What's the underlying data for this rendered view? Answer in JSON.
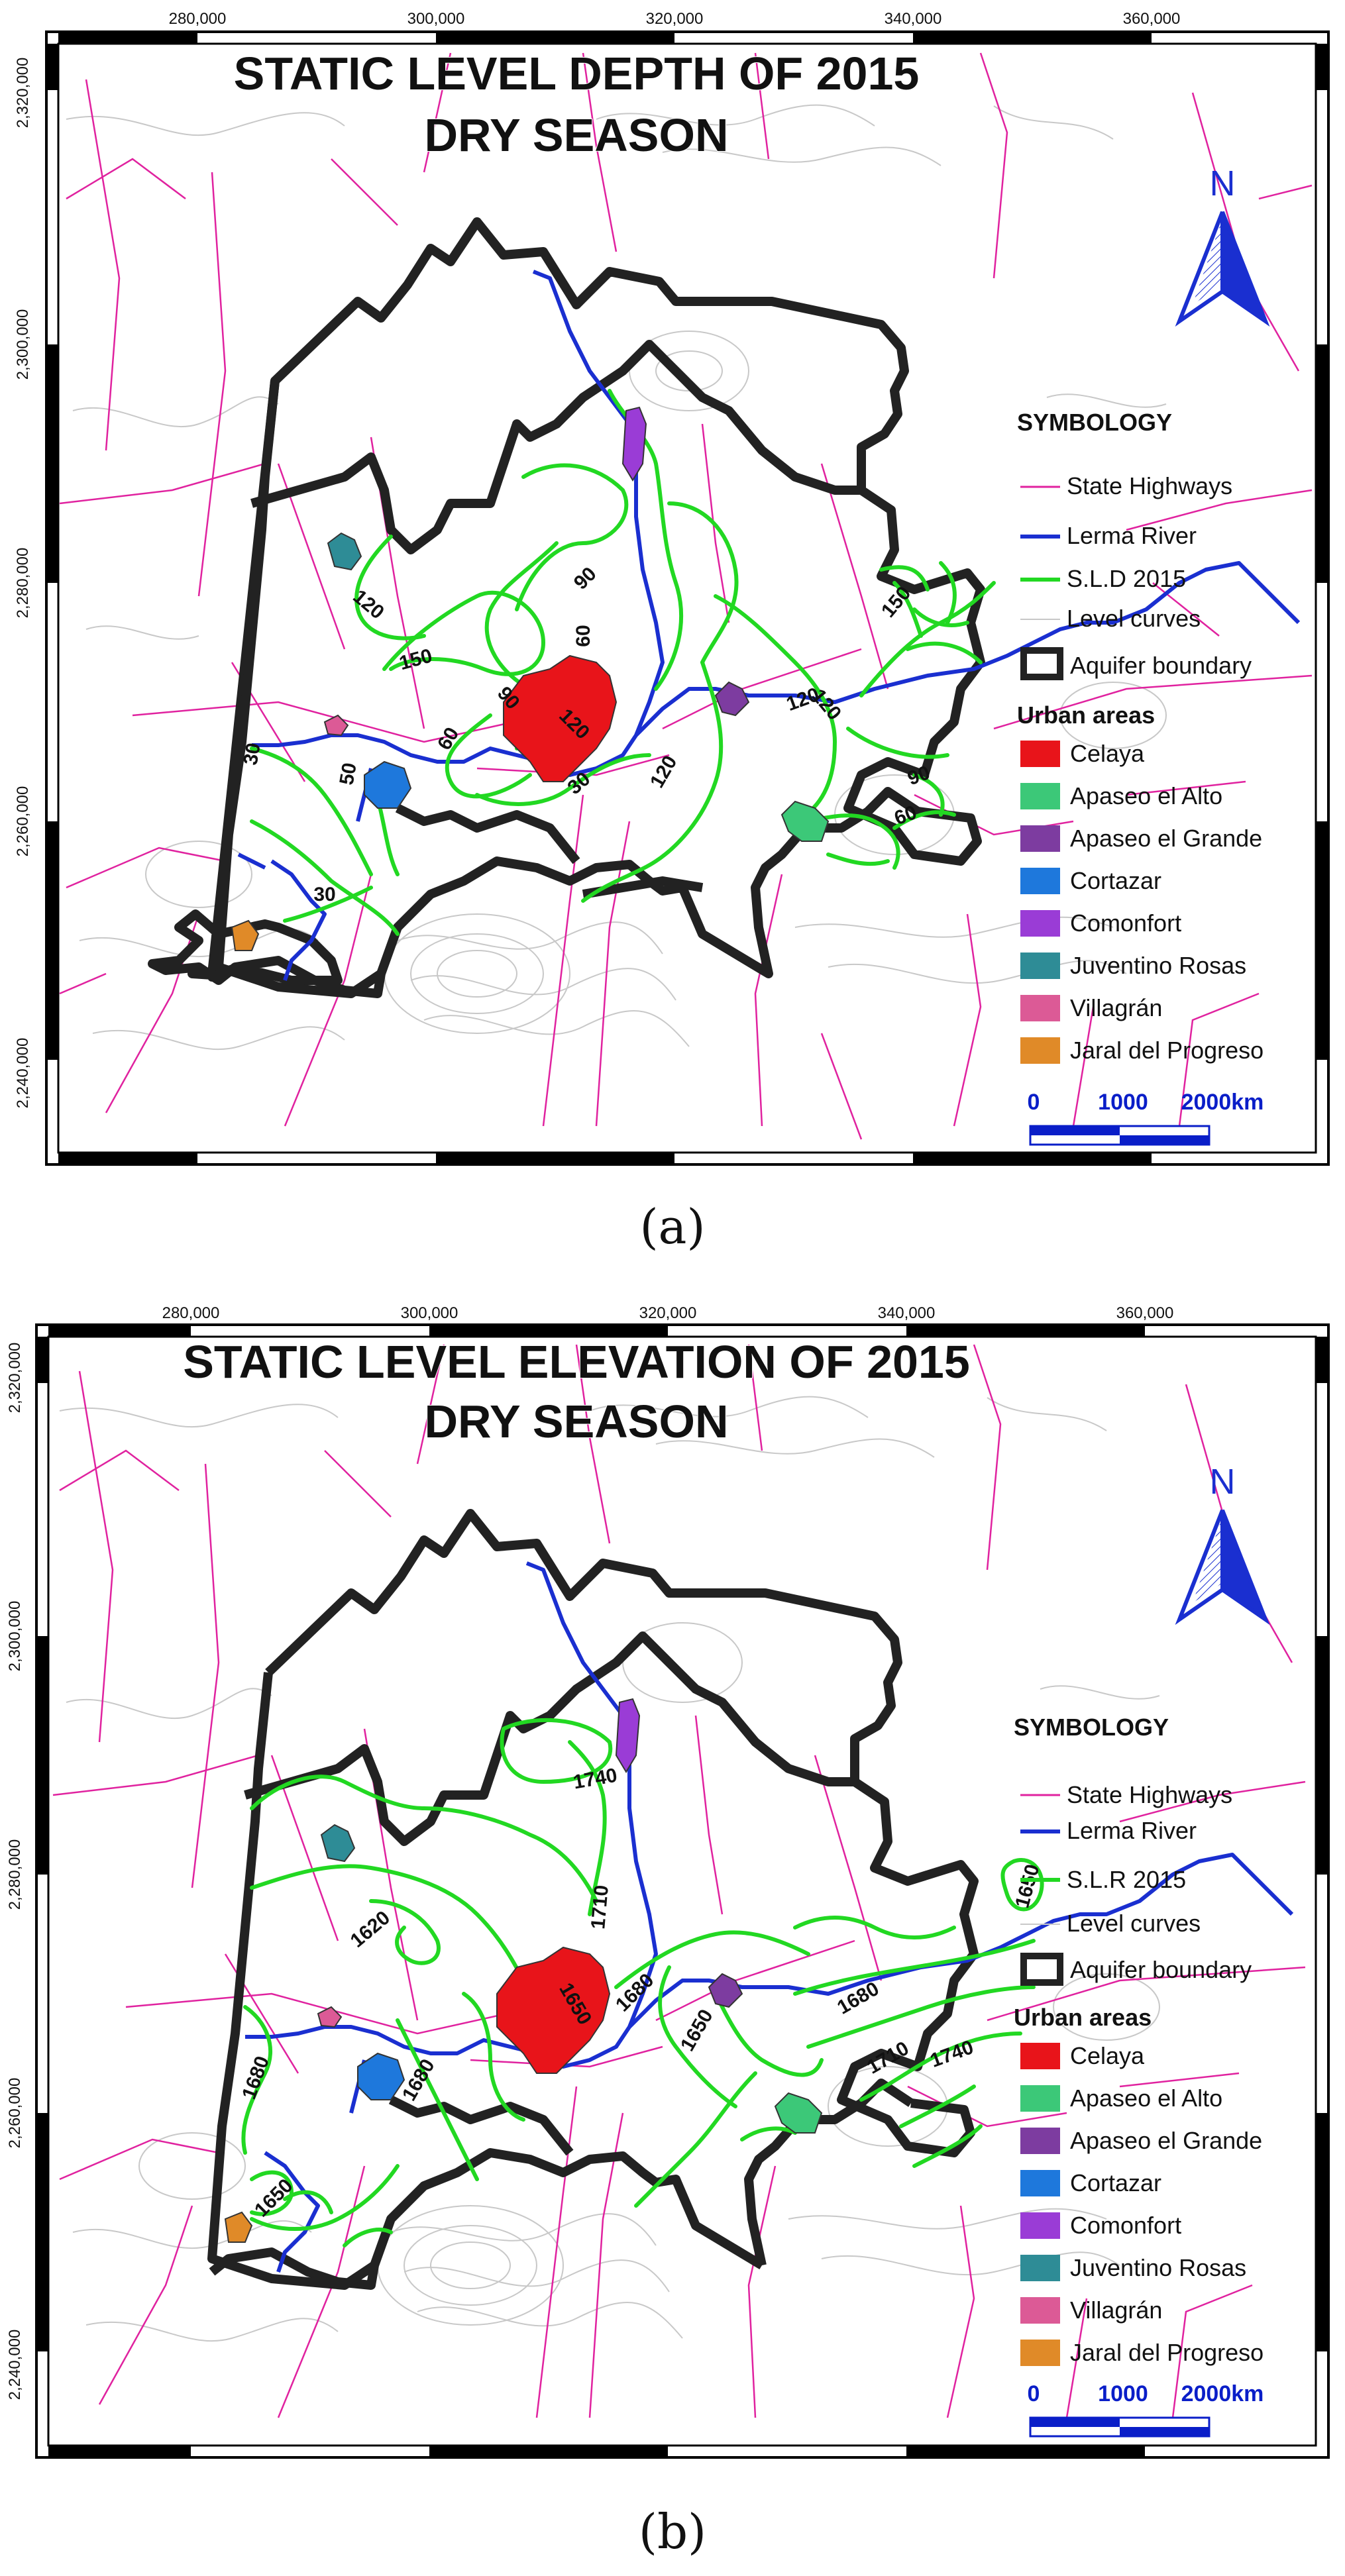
{
  "panels": [
    {
      "id": "a",
      "title_line1": "STATIC LEVEL DEPTH OF 2015",
      "title_line2": "DRY SEASON",
      "caption": "(a)",
      "legend_title": "SYMBOLOGY",
      "legend_items": [
        "State Highways",
        "Lerma River",
        "S.L.D 2015",
        "Level curves",
        "Aquifer boundary"
      ],
      "urban_title": "Urban areas",
      "urban_items": [
        "Celaya",
        "Apaseo el Alto",
        "Apaseo el Grande",
        "Cortazar",
        "Comonfort",
        "Juventino Rosas",
        "Villagrán",
        "Jaral del Progreso"
      ],
      "contour_labels": [
        "120",
        "150",
        "90",
        "60",
        "120",
        "90",
        "30",
        "50",
        "60",
        "30",
        "120",
        "30",
        "120",
        "150",
        "120",
        "90",
        "60"
      ],
      "x_ticks": [
        "280,000",
        "300,000",
        "320,000",
        "340,000",
        "360,000"
      ],
      "y_ticks": [
        "2,320,000",
        "2,300,000",
        "2,280,000",
        "2,260,000",
        "2,240,000"
      ],
      "north": "N",
      "scale_labels": [
        "0",
        "1000",
        "2000km"
      ]
    },
    {
      "id": "b",
      "title_line1": "STATIC LEVEL ELEVATION OF 2015",
      "title_line2": "DRY SEASON",
      "caption": "(b)",
      "legend_title": "SYMBOLOGY",
      "legend_items": [
        "State Highways",
        "Lerma River",
        "S.L.R 2015",
        "Level curves",
        "Aquifer boundary"
      ],
      "urban_title": "Urban areas",
      "urban_items": [
        "Celaya",
        "Apaseo el Alto",
        "Apaseo el Grande",
        "Cortazar",
        "Comonfort",
        "Juventino Rosas",
        "Villagrán",
        "Jaral del Progreso"
      ],
      "contour_labels": [
        "1740",
        "1620",
        "1710",
        "1680",
        "1650",
        "1680",
        "1680",
        "1650",
        "1650",
        "1680",
        "1710",
        "1740",
        "1650"
      ],
      "x_ticks": [
        "280,000",
        "300,000",
        "320,000",
        "340,000",
        "360,000"
      ],
      "y_ticks": [
        "2,320,000",
        "2,300,000",
        "2,280,000",
        "2,260,000",
        "2,240,000"
      ],
      "north": "N",
      "scale_labels": [
        "0",
        "1000",
        "2000km"
      ]
    }
  ],
  "colors": {
    "highway": "#e0229f",
    "river": "#1a2fd0",
    "contour": "#22d822",
    "boundary": "#222222",
    "level_curves": "#c8c8c8",
    "scale_blue": "#0a1ec8",
    "urban": [
      "#e8141a",
      "#3cc878",
      "#7d3ca0",
      "#1e78dc",
      "#9a3cd6",
      "#2e8c96",
      "#dc5a96",
      "#e08a28"
    ]
  },
  "icons": [
    "north-arrow-icon"
  ]
}
